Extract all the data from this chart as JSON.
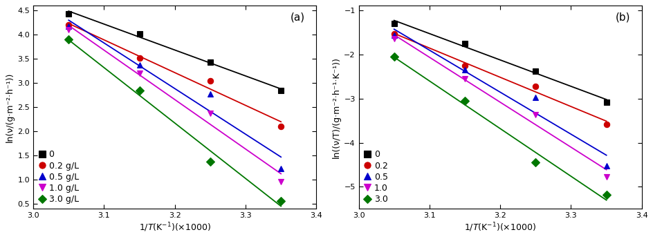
{
  "panel_a": {
    "title": "(a)",
    "ylabel": "ln(ν/(g·m⁻²·h⁻¹))",
    "xlabel": "1/T(K⁻¹)(×1000)",
    "xlim": [
      3.0,
      3.4
    ],
    "ylim": [
      0.4,
      4.6
    ],
    "xticks": [
      3.0,
      3.1,
      3.2,
      3.3,
      3.4
    ],
    "yticks": [
      0.5,
      1.0,
      1.5,
      2.0,
      2.5,
      3.0,
      3.5,
      4.0,
      4.5
    ],
    "series": [
      {
        "label": "0",
        "color": "black",
        "marker": "s",
        "x_data": [
          3.05,
          3.15,
          3.25,
          3.35
        ],
        "y_data": [
          4.44,
          4.02,
          3.43,
          2.85
        ]
      },
      {
        "label": "0.2 g/L",
        "color": "#cc0000",
        "marker": "o",
        "x_data": [
          3.05,
          3.15,
          3.25,
          3.35
        ],
        "y_data": [
          4.2,
          3.52,
          3.05,
          2.1
        ]
      },
      {
        "label": "0.5 g/L",
        "color": "#0000cc",
        "marker": "^",
        "x_data": [
          3.05,
          3.15,
          3.25,
          3.35
        ],
        "y_data": [
          4.17,
          3.38,
          2.77,
          1.23
        ]
      },
      {
        "label": "1.0 g/L",
        "color": "#cc00cc",
        "marker": "v",
        "x_data": [
          3.05,
          3.15,
          3.25,
          3.35
        ],
        "y_data": [
          4.1,
          3.2,
          2.37,
          0.97
        ]
      },
      {
        "label": "3.0 g/L",
        "color": "#007700",
        "marker": "D",
        "x_data": [
          3.05,
          3.15,
          3.25,
          3.35
        ],
        "y_data": [
          3.9,
          2.85,
          1.38,
          0.57
        ]
      }
    ]
  },
  "panel_b": {
    "title": "(b)",
    "ylabel": "ln((ν/T)/(g·m⁻²·h⁻¹·K⁻¹))",
    "xlabel": "1/T(K⁻¹)(×1000)",
    "xlim": [
      3.0,
      3.4
    ],
    "ylim": [
      -5.5,
      -0.9
    ],
    "xticks": [
      3.0,
      3.1,
      3.2,
      3.3,
      3.4
    ],
    "yticks": [
      -5.0,
      -4.0,
      -3.0,
      -2.0,
      -1.0
    ],
    "series": [
      {
        "label": "0",
        "color": "black",
        "marker": "s",
        "x_data": [
          3.05,
          3.15,
          3.25,
          3.35
        ],
        "y_data": [
          -1.3,
          -1.75,
          -2.38,
          -3.08
        ]
      },
      {
        "label": "0.2",
        "color": "#cc0000",
        "marker": "o",
        "x_data": [
          3.05,
          3.15,
          3.25,
          3.35
        ],
        "y_data": [
          -1.53,
          -2.25,
          -2.72,
          -3.58
        ]
      },
      {
        "label": "0.5",
        "color": "#0000cc",
        "marker": "^",
        "x_data": [
          3.05,
          3.15,
          3.25,
          3.35
        ],
        "y_data": [
          -1.57,
          -2.35,
          -2.98,
          -4.53
        ]
      },
      {
        "label": "1.0",
        "color": "#cc00cc",
        "marker": "v",
        "x_data": [
          3.05,
          3.15,
          3.25,
          3.35
        ],
        "y_data": [
          -1.65,
          -2.55,
          -3.37,
          -4.77
        ]
      },
      {
        "label": "3.0",
        "color": "#007700",
        "marker": "D",
        "x_data": [
          3.05,
          3.15,
          3.25,
          3.35
        ],
        "y_data": [
          -2.05,
          -3.05,
          -4.45,
          -5.18
        ]
      }
    ]
  },
  "marker_size": 6,
  "line_width": 1.3,
  "font_size_label": 9,
  "font_size_tick": 8,
  "font_size_legend": 9,
  "font_size_panel_label": 11
}
